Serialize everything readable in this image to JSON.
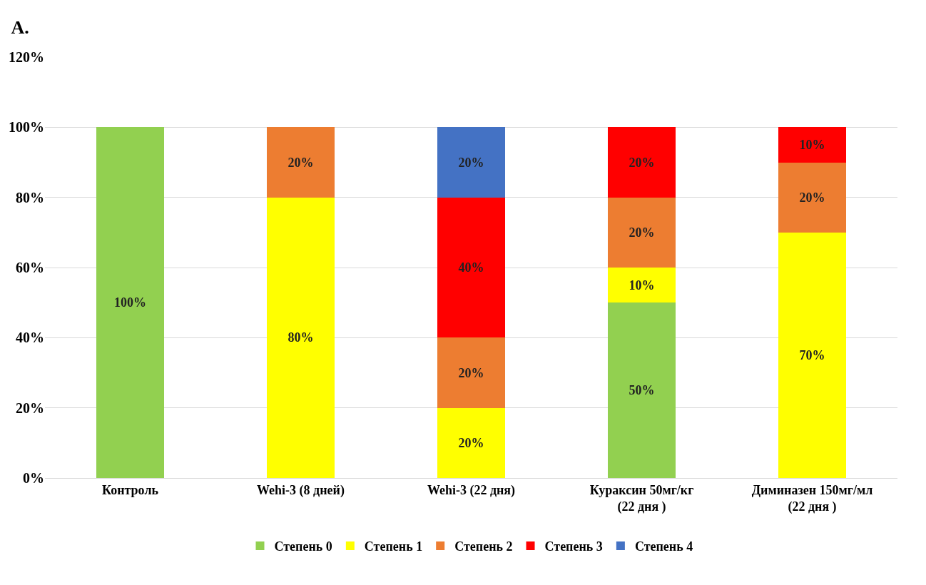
{
  "chart_data": {
    "type": "bar",
    "stacked": true,
    "title": "A.",
    "categories": [
      "Контроль",
      "Wehi-3 (8 дней)",
      "Wehi-3 (22 дня)",
      "Кураксин 50мг/кг (22 дня )",
      "Диминазен 150мг/мл (22 дня )"
    ],
    "series": [
      {
        "name": "Степень 0",
        "color": "#92d050",
        "values": [
          100,
          null,
          null,
          50,
          null
        ],
        "value_labels": [
          "100%",
          null,
          null,
          "50%",
          null
        ]
      },
      {
        "name": "Степень 1",
        "color": "#ffff00",
        "values": [
          null,
          80,
          20,
          10,
          70
        ],
        "value_labels": [
          null,
          "80%",
          "20%",
          "10%",
          "70%"
        ]
      },
      {
        "name": "Степень 2",
        "color": "#ed7d31",
        "values": [
          null,
          20,
          20,
          20,
          20
        ],
        "value_labels": [
          null,
          "20%",
          "20%",
          "20%",
          "20%"
        ]
      },
      {
        "name": "Степень 3",
        "color": "#ff0000",
        "values": [
          null,
          null,
          40,
          20,
          10
        ],
        "value_labels": [
          null,
          null,
          "40%",
          "20%",
          "10%"
        ]
      },
      {
        "name": "Степень 4",
        "color": "#4472c4",
        "values": [
          null,
          null,
          20,
          null,
          null
        ],
        "value_labels": [
          null,
          null,
          "20%",
          null,
          null
        ]
      }
    ],
    "ylim": [
      0,
      120
    ],
    "yticks": [
      {
        "value": 0,
        "label": "0%"
      },
      {
        "value": 20,
        "label": "20%"
      },
      {
        "value": 40,
        "label": "40%"
      },
      {
        "value": 60,
        "label": "60%"
      },
      {
        "value": 80,
        "label": "80%"
      },
      {
        "value": 100,
        "label": "100%"
      },
      {
        "value": 120,
        "label": "120%"
      }
    ],
    "grid": "y",
    "legend": "bottom"
  }
}
